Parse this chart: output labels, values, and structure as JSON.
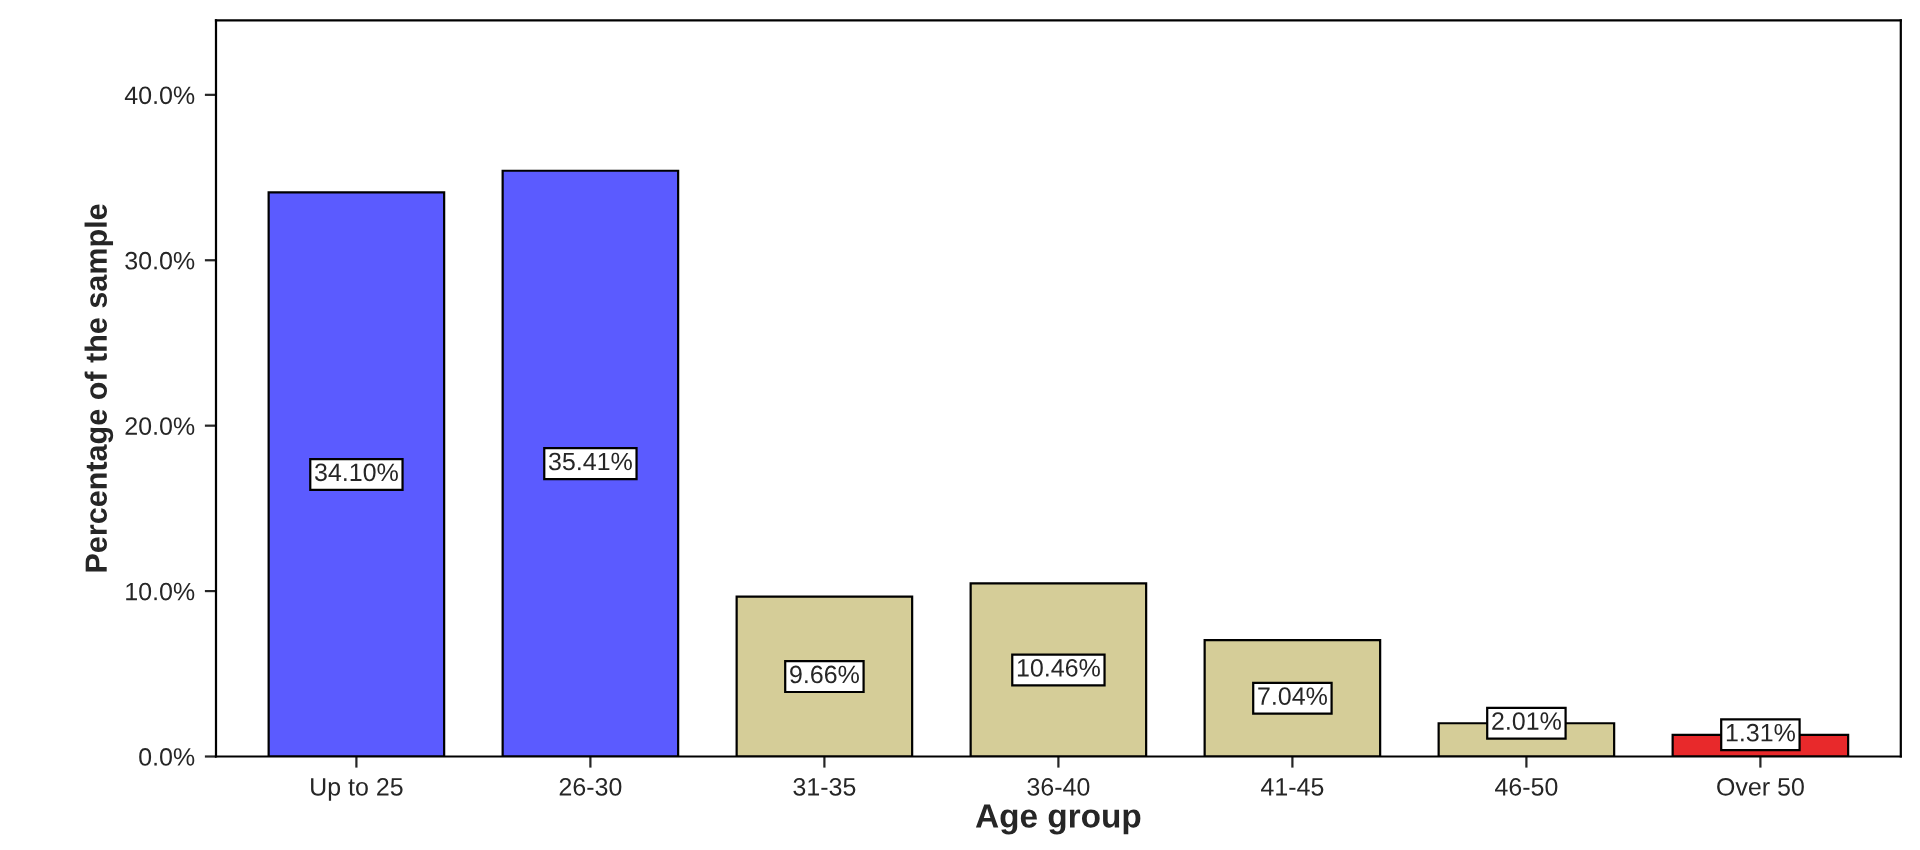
{
  "chart_data": {
    "type": "bar",
    "xlabel": "Age group",
    "ylabel": "Percentage of the sample",
    "categories": [
      "Up to 25",
      "26-30",
      "31-35",
      "36-40",
      "41-45",
      "46-50",
      "Over 50"
    ],
    "values": [
      34.1,
      35.41,
      9.66,
      10.46,
      7.04,
      2.01,
      1.31
    ],
    "colors": [
      "#5b5bff",
      "#5b5bff",
      "#d5cd98",
      "#d5cd98",
      "#d5cd98",
      "#d5cd98",
      "#e8292b"
    ],
    "value_labels": [
      "34.10%",
      "35.41%",
      "9.66%",
      "10.46%",
      "7.04%",
      "2.01%",
      "1.31%"
    ],
    "ylim": [
      0,
      44.5
    ],
    "yticks": [
      {
        "value": 0,
        "label": "0.0%"
      },
      {
        "value": 10,
        "label": "10.0%"
      },
      {
        "value": 20,
        "label": "20.0%"
      },
      {
        "value": 30,
        "label": "30.0%"
      },
      {
        "value": 40,
        "label": "40.0%"
      }
    ],
    "grid": false
  }
}
